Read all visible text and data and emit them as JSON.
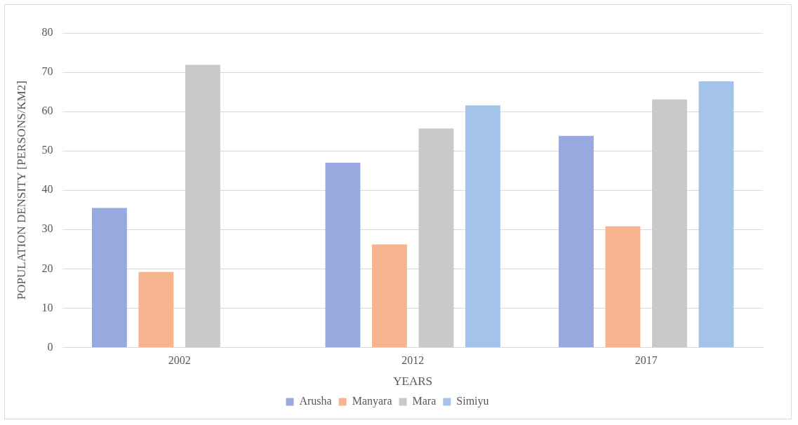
{
  "chart_data": {
    "type": "bar",
    "xlabel": "YEARS",
    "ylabel": "POPULATION DENSITY [PERSONS/KM2]",
    "categories": [
      "2002",
      "2012",
      "2017"
    ],
    "series": [
      {
        "name": "Arusha",
        "color": "#97a9df",
        "values": [
          35.5,
          47.0,
          53.8
        ]
      },
      {
        "name": "Manyara",
        "color": "#f6b48f",
        "values": [
          19.2,
          26.2,
          30.8
        ]
      },
      {
        "name": "Mara",
        "color": "#c9c9c9",
        "values": [
          71.9,
          55.7,
          63.1
        ]
      },
      {
        "name": "Simiyu",
        "color": "#a3c4e8",
        "values": [
          null,
          61.6,
          67.7
        ]
      }
    ],
    "ylim": [
      0,
      80
    ],
    "yticks": [
      0,
      10,
      20,
      30,
      40,
      50,
      60,
      70,
      80
    ],
    "grid": "y",
    "legend": "bottom"
  }
}
